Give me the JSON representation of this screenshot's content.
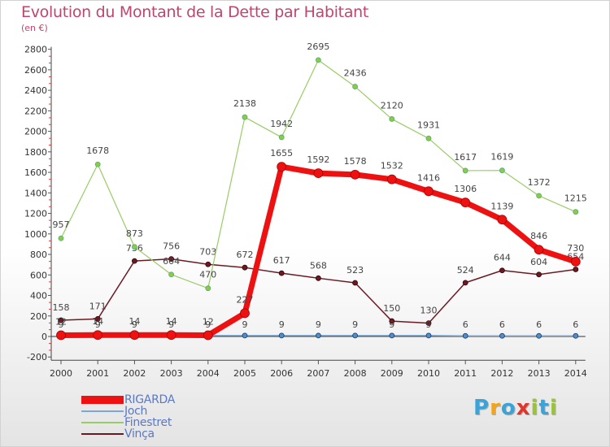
{
  "title": "Evolution du Montant de la Dette par Habitant",
  "subtitle": "(en €)",
  "logo": [
    "P",
    "r",
    "o",
    "x",
    "i",
    "t",
    "i"
  ],
  "logo_colors": [
    "#3aa3d8",
    "#f2a51c",
    "#3aa3d8",
    "#e0352b",
    "#9bc23c",
    "#3aa3d8",
    "#9bc23c"
  ],
  "chart_data": {
    "type": "line",
    "title": "Evolution du Montant de la Dette par Habitant",
    "ylabel": "(en €)",
    "xlabel": "",
    "ylim": [
      -200,
      2800
    ],
    "yticks": [
      "-200",
      "0",
      "200",
      "400",
      "600",
      "800",
      "1000",
      "1200",
      "1400",
      "1600",
      "1800",
      "2000",
      "2200",
      "2400",
      "2600",
      "2800"
    ],
    "categories": [
      "2000",
      "2001",
      "2002",
      "2003",
      "2004",
      "2005",
      "2006",
      "2007",
      "2008",
      "2009",
      "2010",
      "2011",
      "2012",
      "2013",
      "2014"
    ],
    "grid": false,
    "legend": "bottom-left",
    "series": [
      {
        "name": "Vinça",
        "color": "#6b1a24",
        "values": [
          158,
          171,
          736,
          756,
          703,
          672,
          617,
          568,
          523,
          150,
          130,
          524,
          644,
          604,
          654
        ],
        "labels": [
          "158",
          "171",
          "736",
          "756",
          "703",
          "672",
          "617",
          "568",
          "523",
          "150",
          "130",
          "524",
          "644",
          "604",
          "654"
        ]
      },
      {
        "name": "Finestret",
        "color": "#99cc66",
        "values": [
          957,
          1678,
          873,
          604,
          470,
          2138,
          1942,
          2695,
          2436,
          2120,
          1931,
          1617,
          1619,
          1372,
          1215
        ],
        "labels": [
          "957",
          "1678",
          "873",
          "604",
          "470",
          "2138",
          "1942",
          "2695",
          "2436",
          "2120",
          "1931",
          "1617",
          "1619",
          "1372",
          "1215"
        ]
      },
      {
        "name": "Joch",
        "color": "#7aa8d8",
        "values": [
          9,
          9,
          9,
          9,
          9,
          9,
          9,
          9,
          9,
          9,
          9,
          6,
          6,
          6,
          6
        ],
        "labels": [
          "9",
          "9",
          "9",
          "9",
          "9",
          "9",
          "9",
          "9",
          "9",
          "9",
          "9",
          "6",
          "6",
          "6",
          "6"
        ]
      },
      {
        "name": "RIGARDA",
        "color": "#ee1111",
        "values": [
          12,
          14,
          14,
          14,
          12,
          227,
          1655,
          1592,
          1578,
          1532,
          1416,
          1306,
          1139,
          846,
          730
        ],
        "labels": [
          "12",
          "14",
          "14",
          "14",
          "12",
          "227",
          "1655",
          "1592",
          "1578",
          "1532",
          "1416",
          "1306",
          "1139",
          "846",
          "730"
        ]
      }
    ]
  },
  "legend_order": [
    "RIGARDA",
    "Joch",
    "Finestret",
    "Vinça"
  ]
}
